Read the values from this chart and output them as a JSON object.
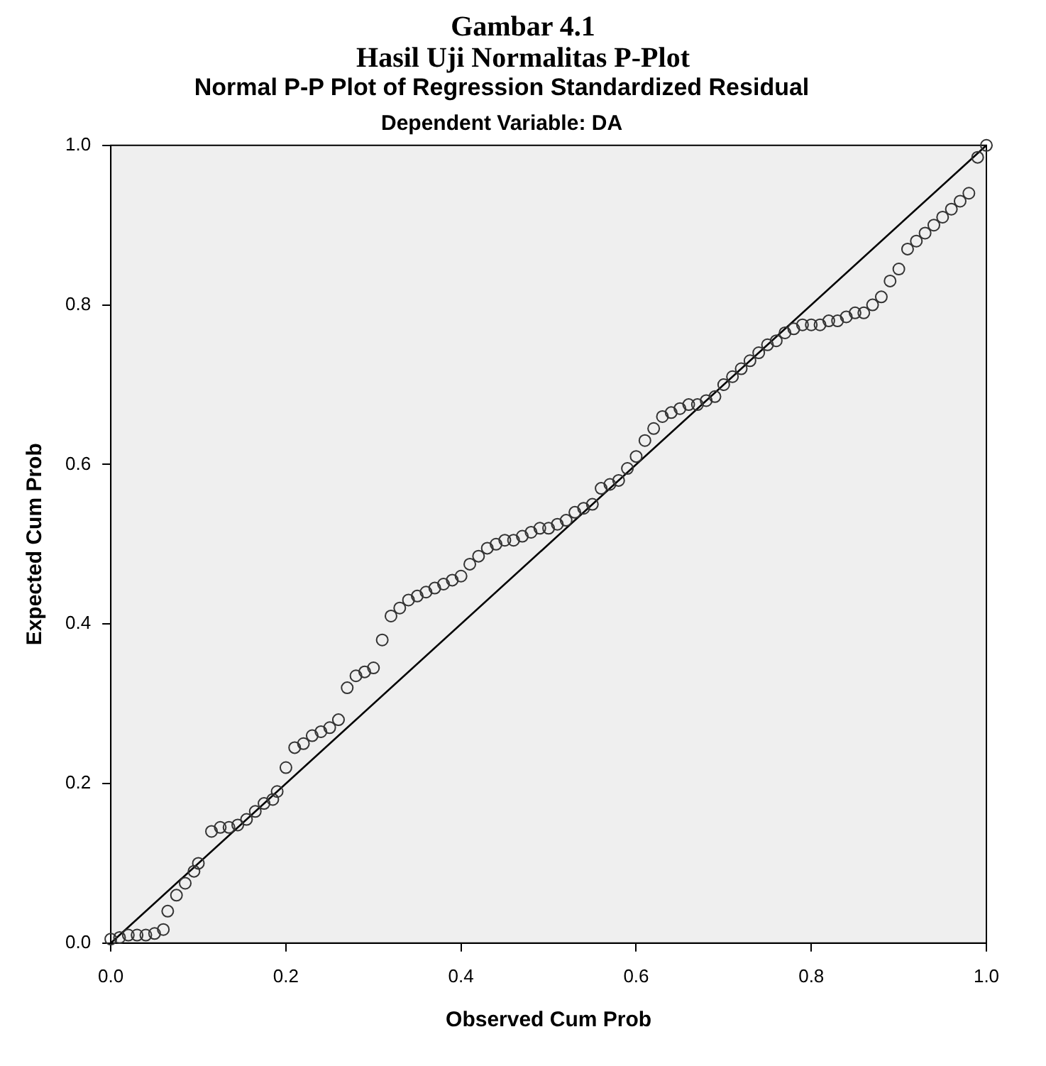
{
  "chart_data": {
    "type": "scatter",
    "title": "Normal P-P Plot of Regression Standardized Residual",
    "subtitle": "Dependent Variable: DA",
    "xlabel": "Observed Cum Prob",
    "ylabel": "Expected Cum Prob",
    "annotations": [
      "Gambar 4.1",
      "Hasil Uji Normalitas P-Plot"
    ],
    "xlim": [
      0,
      1
    ],
    "ylim": [
      0,
      1
    ],
    "xticks": [
      {
        "value": 0,
        "label": "0.0"
      },
      {
        "value": 0.2,
        "label": "0.2"
      },
      {
        "value": 0.4,
        "label": "0.4"
      },
      {
        "value": 0.6,
        "label": "0.6"
      },
      {
        "value": 0.8,
        "label": "0.8"
      },
      {
        "value": 1,
        "label": "1.0"
      }
    ],
    "yticks": [
      {
        "value": 0,
        "label": "0.0"
      },
      {
        "value": 0.2,
        "label": "0.2"
      },
      {
        "value": 0.4,
        "label": "0.4"
      },
      {
        "value": 0.6,
        "label": "0.6"
      },
      {
        "value": 0.8,
        "label": "0.8"
      },
      {
        "value": 1,
        "label": "1.0"
      }
    ],
    "grid": false,
    "legend": false,
    "series": [
      {
        "type": "scatter",
        "marker": "circle",
        "color": "#333333",
        "x": [
          0,
          0.01,
          0.02,
          0.03,
          0.04,
          0.05,
          0.06,
          0.065,
          0.075,
          0.085,
          0.095,
          0.1,
          0.115,
          0.125,
          0.135,
          0.145,
          0.155,
          0.165,
          0.175,
          0.185,
          0.19,
          0.2,
          0.21,
          0.22,
          0.23,
          0.24,
          0.25,
          0.26,
          0.27,
          0.28,
          0.29,
          0.3,
          0.31,
          0.32,
          0.33,
          0.34,
          0.35,
          0.36,
          0.37,
          0.38,
          0.39,
          0.4,
          0.41,
          0.42,
          0.43,
          0.44,
          0.45,
          0.46,
          0.47,
          0.48,
          0.49,
          0.5,
          0.51,
          0.52,
          0.53,
          0.54,
          0.55,
          0.56,
          0.57,
          0.58,
          0.59,
          0.6,
          0.61,
          0.62,
          0.63,
          0.64,
          0.65,
          0.66,
          0.67,
          0.68,
          0.69,
          0.7,
          0.71,
          0.72,
          0.73,
          0.74,
          0.75,
          0.76,
          0.77,
          0.78,
          0.79,
          0.8,
          0.81,
          0.82,
          0.83,
          0.84,
          0.85,
          0.86,
          0.87,
          0.88,
          0.89,
          0.9,
          0.91,
          0.92,
          0.93,
          0.94,
          0.95,
          0.96,
          0.97,
          0.98,
          0.99,
          1
        ],
        "values": [
          0.005,
          0.007,
          0.01,
          0.01,
          0.01,
          0.012,
          0.017,
          0.04,
          0.06,
          0.075,
          0.09,
          0.1,
          0.14,
          0.145,
          0.145,
          0.148,
          0.155,
          0.165,
          0.175,
          0.18,
          0.19,
          0.22,
          0.245,
          0.25,
          0.26,
          0.265,
          0.27,
          0.28,
          0.32,
          0.335,
          0.34,
          0.345,
          0.38,
          0.41,
          0.42,
          0.43,
          0.435,
          0.44,
          0.445,
          0.45,
          0.455,
          0.46,
          0.475,
          0.485,
          0.495,
          0.5,
          0.505,
          0.505,
          0.51,
          0.515,
          0.52,
          0.52,
          0.525,
          0.53,
          0.54,
          0.545,
          0.55,
          0.57,
          0.575,
          0.58,
          0.595,
          0.61,
          0.63,
          0.645,
          0.66,
          0.665,
          0.67,
          0.675,
          0.675,
          0.68,
          0.685,
          0.7,
          0.71,
          0.72,
          0.73,
          0.74,
          0.75,
          0.755,
          0.765,
          0.77,
          0.775,
          0.775,
          0.775,
          0.78,
          0.78,
          0.785,
          0.79,
          0.79,
          0.8,
          0.81,
          0.83,
          0.845,
          0.87,
          0.88,
          0.89,
          0.9,
          0.91,
          0.92,
          0.93,
          0.94,
          0.985,
          1
        ]
      },
      {
        "type": "line",
        "marker": "none",
        "color": "#000000",
        "x": [
          0,
          1
        ],
        "values": [
          0,
          1
        ]
      }
    ]
  }
}
